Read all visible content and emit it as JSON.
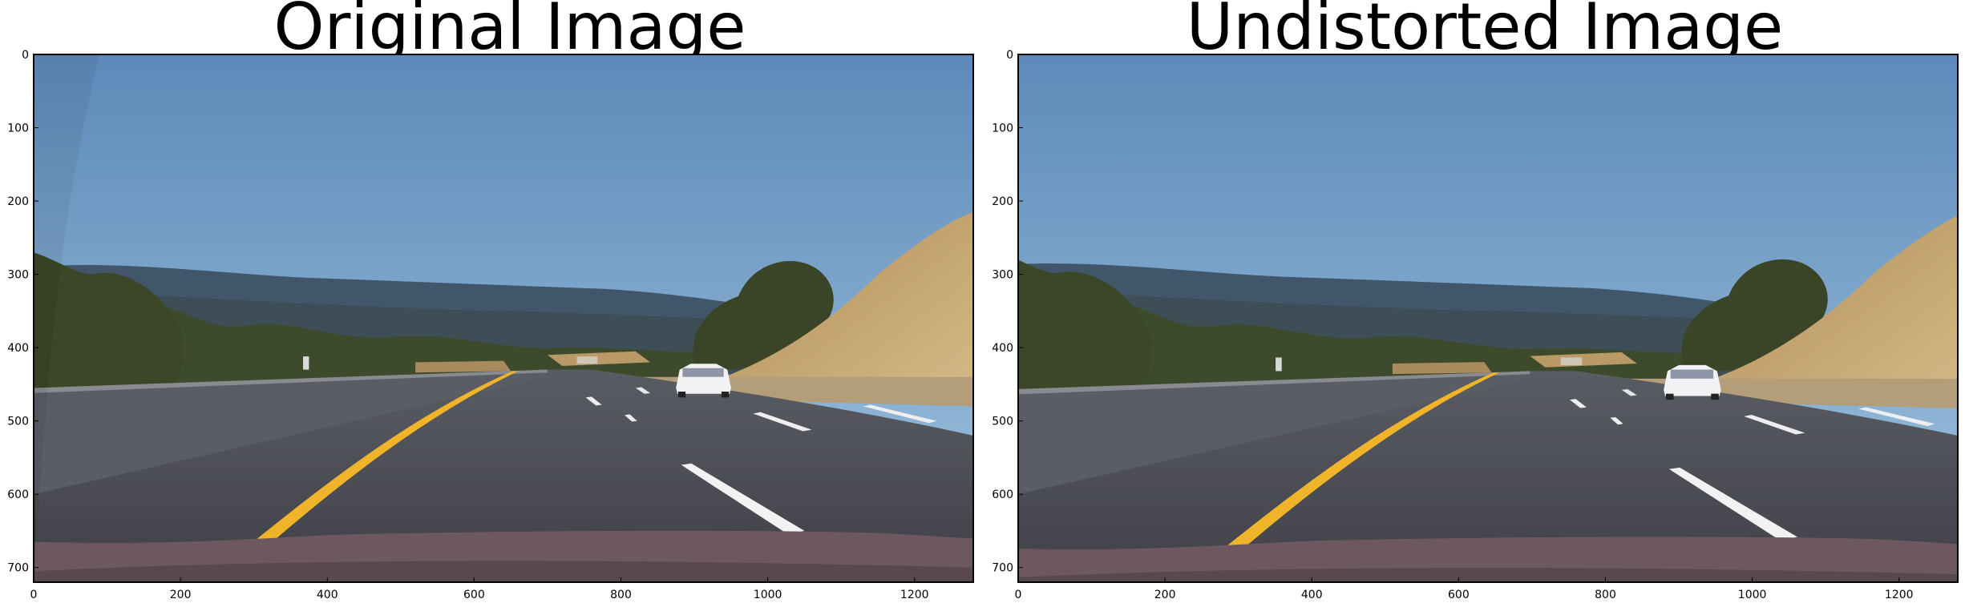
{
  "figure": {
    "panels": [
      {
        "title": "Original Image",
        "x_ticks": [
          "0",
          "200",
          "400",
          "600",
          "800",
          "1000",
          "1200"
        ],
        "y_ticks": [
          "0",
          "100",
          "200",
          "300",
          "400",
          "500",
          "600",
          "700"
        ]
      },
      {
        "title": "Undistorted Image",
        "x_ticks": [
          "0",
          "200",
          "400",
          "600",
          "800",
          "1000",
          "1200"
        ],
        "y_ticks": [
          "0",
          "100",
          "200",
          "300",
          "400",
          "500",
          "600",
          "700"
        ]
      }
    ],
    "image_size": {
      "width": 1280,
      "height": 720
    }
  },
  "colors": {
    "sky_top": "#5c88b8",
    "sky_bottom": "#9ec3df",
    "hills": "#3f5468",
    "trees": "#3b4a2a",
    "dry_grass": "#c3a36c",
    "barrier": "#606268",
    "road": "#4a4b52",
    "yellow_line": "#f0b52a",
    "white_line": "#f2f2f2",
    "hood": "#6c5760"
  }
}
